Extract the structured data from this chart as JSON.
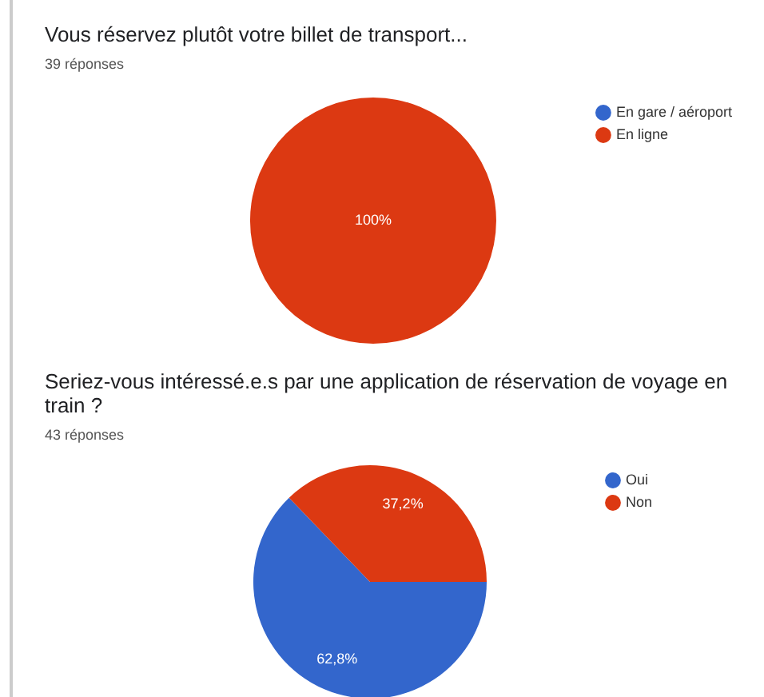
{
  "chart_data": [
    {
      "type": "pie",
      "title": "Vous réservez plutôt votre billet de transport...",
      "subtitle": "39 réponses",
      "categories": [
        "En gare / aéroport",
        "En ligne"
      ],
      "values": [
        0,
        100
      ],
      "colors": [
        "#3366cc",
        "#dc3912"
      ],
      "value_labels": [
        null,
        "100%"
      ],
      "legend": "top right"
    },
    {
      "type": "pie",
      "title": "Seriez-vous intéressé.e.s par une application de réservation de voyage en train ?",
      "subtitle": "43 réponses",
      "categories": [
        "Oui",
        "Non"
      ],
      "values": [
        62.8,
        37.2
      ],
      "colors": [
        "#3366cc",
        "#dc3912"
      ],
      "value_labels": [
        "62,8%",
        "37,2%"
      ],
      "legend": "top right"
    }
  ]
}
